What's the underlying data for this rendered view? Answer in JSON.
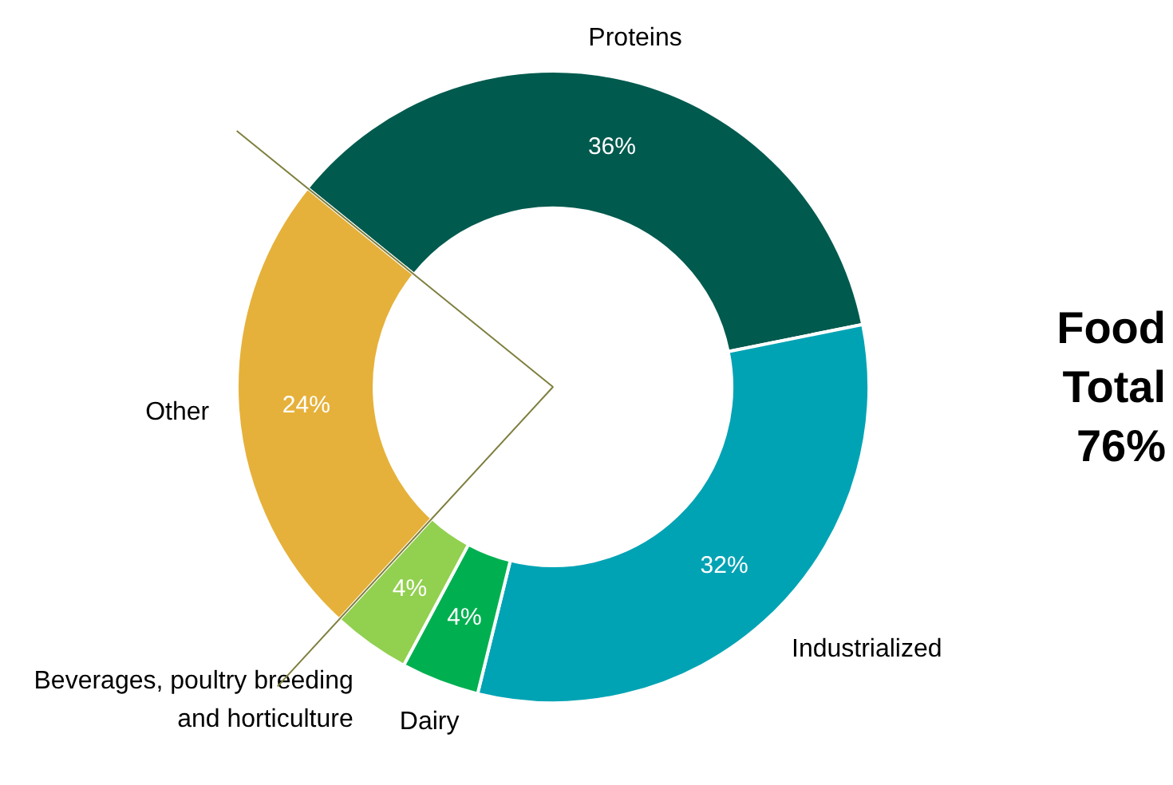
{
  "chart_data": {
    "type": "donut",
    "categories": [
      "Proteins",
      "Industrialized",
      "Dairy",
      "Beverages, poultry breeding and horticulture",
      "Other"
    ],
    "values": [
      36,
      32,
      4,
      4,
      24
    ],
    "colors": [
      "#005a4e",
      "#00a3b4",
      "#00b050",
      "#92d050",
      "#e6b13a"
    ],
    "value_labels": [
      "36%",
      "32%",
      "4%",
      "4%",
      "24%"
    ],
    "annotations": [
      "Food Total 76%"
    ]
  }
}
